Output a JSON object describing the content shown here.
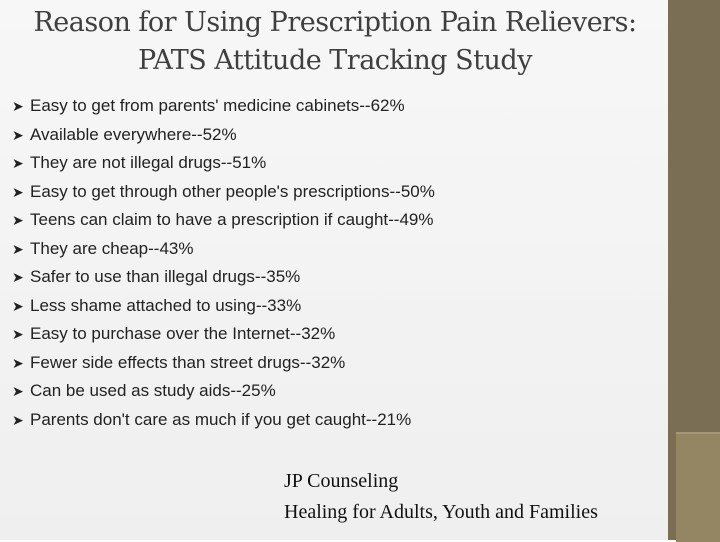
{
  "slide": {
    "title": "Reason for Using Prescription Pain Relievers: PATS Attitude Tracking Study",
    "bullets": [
      "Easy to get from parents' medicine cabinets--62%",
      "Available everywhere--52%",
      "They are not illegal drugs--51%",
      "Easy to get through other people's prescriptions--50%",
      "Teens can claim to have a prescription if caught--49%",
      "They are cheap--43%",
      "Safer to use than illegal drugs--35%",
      "Less shame attached to using--33%",
      "Easy to purchase over the Internet--32%",
      "Fewer side effects than street drugs--32%",
      "Can be used as study aids--25%",
      "Parents don't care as much if you get caught--21%"
    ],
    "footer_line1": "JP Counseling",
    "footer_line2": "Healing for Adults, Youth and Families"
  },
  "colors": {
    "background": "#f3f3f3",
    "sidebar": "#7a6e55",
    "title_text": "#3f3f3f",
    "body_text": "#222222"
  },
  "icons": {
    "bullet": "arrow-bullet-icon"
  }
}
